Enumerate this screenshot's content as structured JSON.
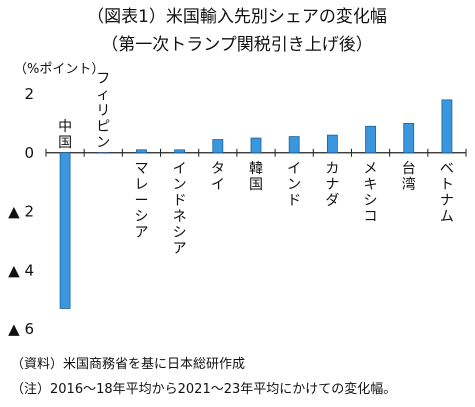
{
  "chart_data": {
    "type": "bar",
    "title": "（図表1）米国輸入先別シェアの変化幅",
    "subtitle": "（第一次トランプ関税引き上げ後）",
    "unit_label": "（%ポイント）",
    "categories": [
      "中国",
      "フィリピン",
      "マレーシア",
      "インドネシア",
      "タイ",
      "韓国",
      "インド",
      "カナダ",
      "メキシコ",
      "台湾",
      "ベトナム"
    ],
    "values": [
      -5.3,
      0.0,
      0.1,
      0.1,
      0.45,
      0.5,
      0.55,
      0.6,
      0.9,
      1.0,
      1.8
    ],
    "ylim": [
      -6,
      2
    ],
    "yticks": [
      {
        "value": 2,
        "label": "2"
      },
      {
        "value": 0,
        "label": "0"
      },
      {
        "value": -2,
        "label": "▲ 2"
      },
      {
        "value": -4,
        "label": "▲ 4"
      },
      {
        "value": -6,
        "label": "▲ 6"
      }
    ],
    "source_note": "（資料）米国商務省を基に日本総研作成",
    "footnote": "（注）2016～18年平均から2021～23年平均にかけての変化幅。",
    "colors": {
      "bar_fill": "#3a96dd",
      "bar_stroke": "#1d5f99",
      "axis": "#222222"
    },
    "grid": false,
    "legend": "none"
  }
}
